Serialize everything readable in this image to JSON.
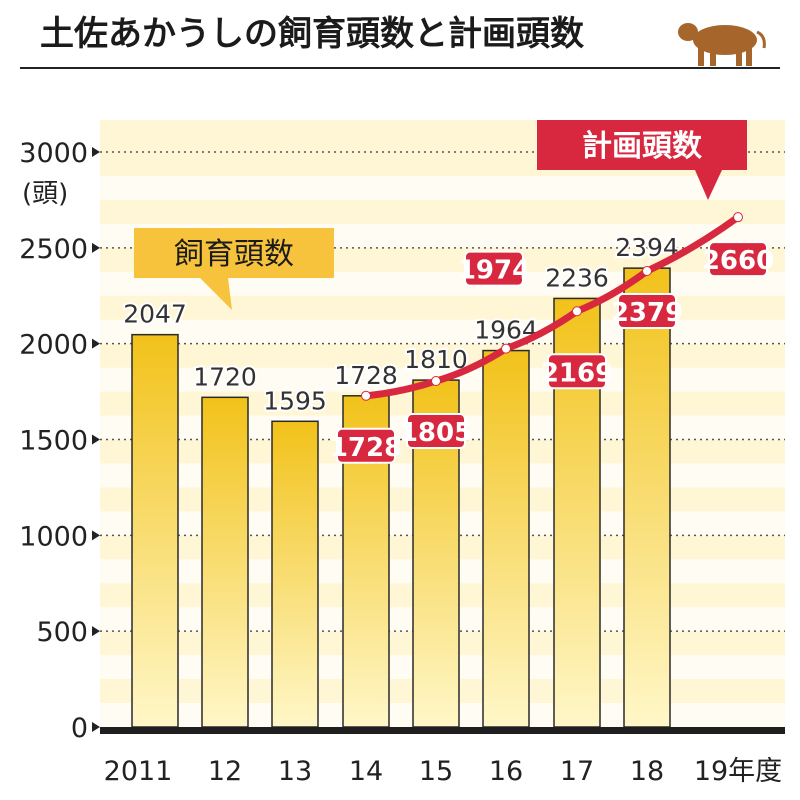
{
  "header": {
    "title": "土佐あかうしの飼育頭数と計画頭数",
    "cow_icon": "cow-icon"
  },
  "colors": {
    "bar_top": "#F2C21A",
    "bar_bottom": "#FFF7C8",
    "plot_bg": "#FFF6D6",
    "plan_line": "#D8283F",
    "label_box": "#D8283F",
    "legend_box": "#F7C33D",
    "axis": "#1E1E1E"
  },
  "chart_data": {
    "type": "bar",
    "title": "土佐あかうしの飼育頭数と計画頭数",
    "ylabel": "(頭)",
    "ylim": [
      0,
      3000
    ],
    "yticks": [
      0,
      500,
      1000,
      1500,
      2000,
      2500,
      3000
    ],
    "categories": [
      "2011",
      "12",
      "13",
      "14",
      "15",
      "16",
      "17",
      "18",
      "19年度"
    ],
    "series": [
      {
        "name": "飼育頭数",
        "type": "bar",
        "values": [
          2047,
          1720,
          1595,
          1728,
          1810,
          1964,
          2236,
          2394,
          null
        ]
      },
      {
        "name": "計画頭数",
        "type": "line",
        "values": [
          null,
          null,
          null,
          1728,
          1805,
          1974,
          2169,
          2379,
          2660
        ]
      }
    ],
    "grid": true,
    "legend": [
      "飼育頭数",
      "計画頭数"
    ]
  }
}
